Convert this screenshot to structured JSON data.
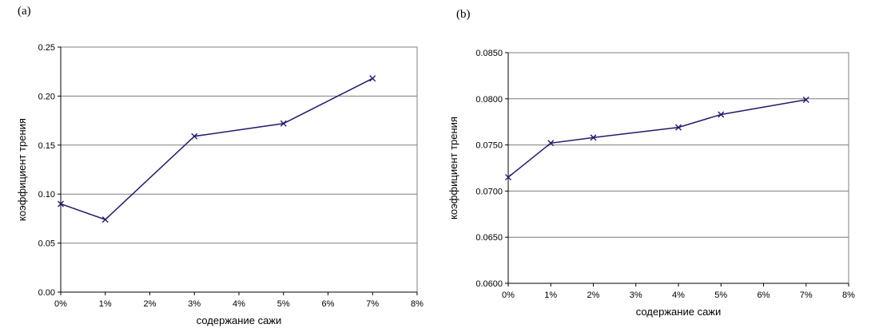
{
  "panels": {
    "a": {
      "label": "(a)"
    },
    "b": {
      "label": "(b)"
    }
  },
  "chart_data": [
    {
      "type": "line",
      "panel": "(a)",
      "title": "",
      "xlabel": "содержание сажи",
      "ylabel": "коэффициент трения",
      "x_categories": [
        "0%",
        "1%",
        "2%",
        "3%",
        "4%",
        "5%",
        "6%",
        "7%",
        "8%"
      ],
      "x": [
        "0%",
        "1%",
        "3%",
        "5%",
        "7%"
      ],
      "series": [
        {
          "values": [
            0.09,
            0.074,
            0.159,
            0.172,
            0.218
          ],
          "color": "#1f1a6e",
          "marker": "x"
        }
      ],
      "ylim": [
        0.0,
        0.25
      ],
      "yticks": [
        "0.00",
        "0.05",
        "0.10",
        "0.15",
        "0.20",
        "0.25"
      ],
      "grid": "horizontal"
    },
    {
      "type": "line",
      "panel": "(b)",
      "title": "",
      "xlabel": "содержание сажи",
      "ylabel": "коэффициент трения",
      "x_categories": [
        "0%",
        "1%",
        "2%",
        "3%",
        "4%",
        "5%",
        "6%",
        "7%",
        "8%"
      ],
      "x": [
        "0%",
        "1%",
        "2%",
        "4%",
        "5%",
        "7%"
      ],
      "series": [
        {
          "values": [
            0.0715,
            0.0752,
            0.0758,
            0.0769,
            0.0783,
            0.0799
          ],
          "color": "#1f1a6e",
          "marker": "x"
        }
      ],
      "ylim": [
        0.06,
        0.085
      ],
      "yticks": [
        "0.0600",
        "0.0650",
        "0.0700",
        "0.0750",
        "0.0800",
        "0.0850"
      ],
      "grid": "horizontal"
    }
  ]
}
